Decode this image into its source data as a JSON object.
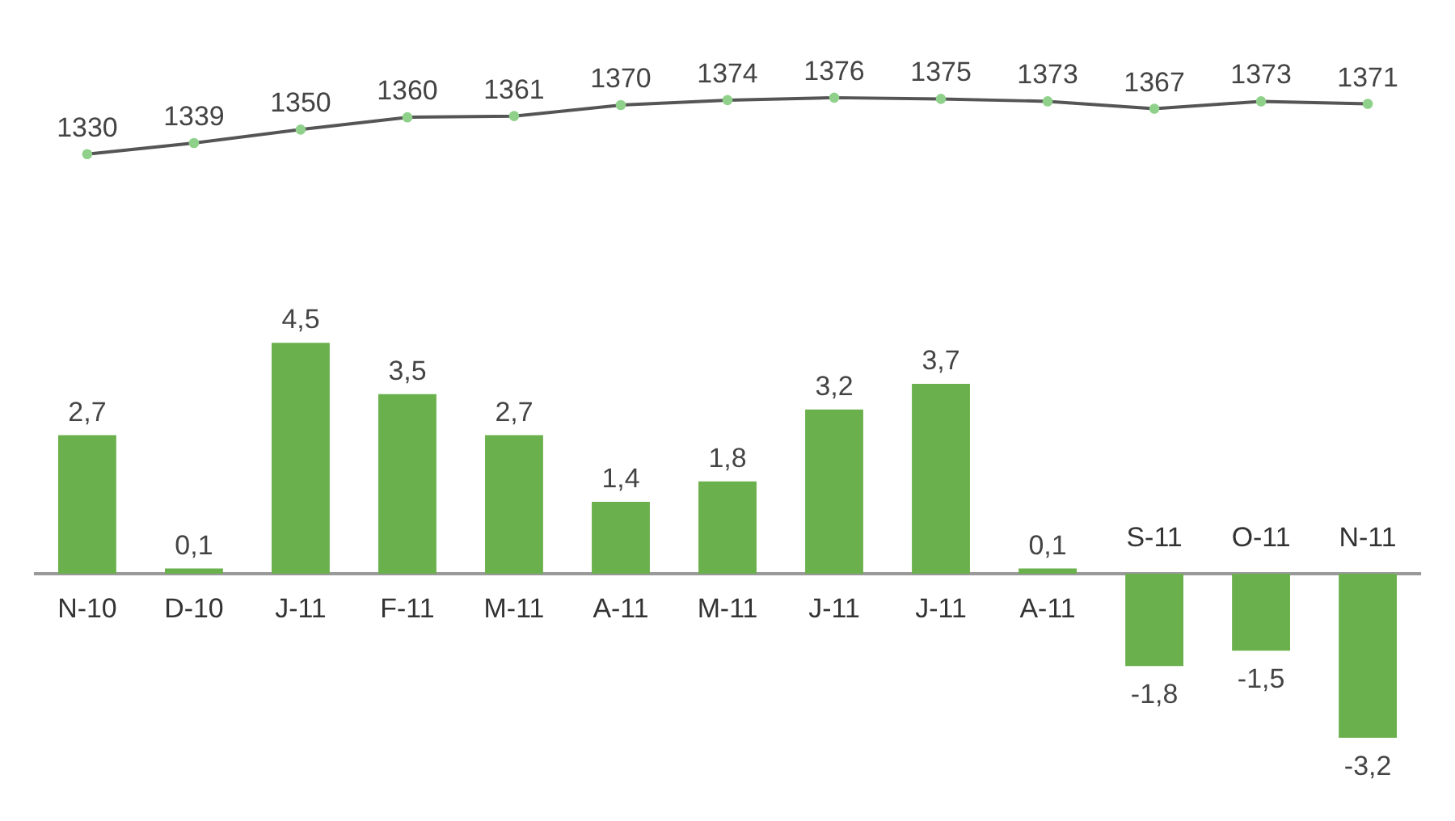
{
  "chart_data": [
    {
      "type": "line",
      "categories": [
        null,
        null,
        null,
        null,
        null,
        null,
        null,
        null,
        null,
        null,
        null,
        null,
        null
      ],
      "series": [
        {
          "color": "#555555",
          "values": [
            1330,
            1339,
            1350,
            1360,
            1361,
            1370,
            1374,
            1376,
            1375,
            1373,
            1367,
            1373,
            1371
          ]
        }
      ],
      "data_labels": true,
      "marker": "circle"
    },
    {
      "type": "bar",
      "categories": [
        "N-10",
        "D-10",
        "J-11",
        "F-11",
        "M-11",
        "A-11",
        "M-11",
        "J-11",
        "J-11",
        "A-11",
        "S-11",
        "O-11",
        "N-11"
      ],
      "series": [
        {
          "color": "#6ab04c",
          "values": [
            2.7,
            0.1,
            4.5,
            3.5,
            2.7,
            1.4,
            1.8,
            3.2,
            3.7,
            0.1,
            -1.8,
            -1.5,
            -3.2
          ],
          "value_labels": [
            "2,7",
            "0,1",
            "4,5",
            "3,5",
            "2,7",
            "1,4",
            "1,8",
            "3,2",
            "3,7",
            "0,1",
            "-1,8",
            "-1,5",
            "-3,2"
          ]
        }
      ],
      "tick_labels": "x"
    }
  ]
}
